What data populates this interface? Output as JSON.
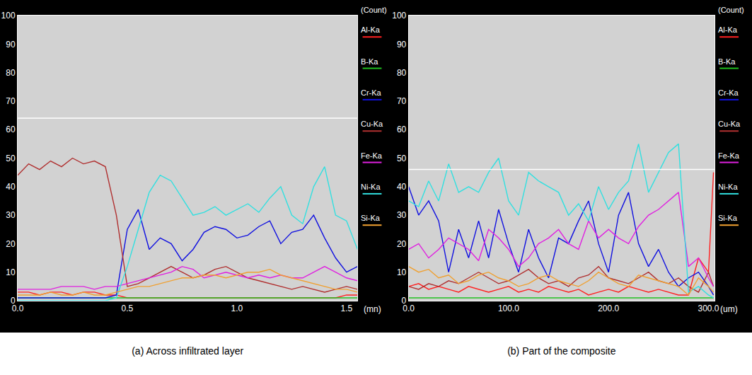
{
  "chart_data": [
    {
      "type": "line",
      "caption": "(a) Across infiltrated layer",
      "x_label": "(mn)",
      "y_label": "(Count)",
      "legend": "right",
      "grid": false,
      "xlim": [
        0,
        1.55
      ],
      "xticks": [
        {
          "value": 0,
          "label": "0.0"
        },
        {
          "value": 0.5,
          "label": "0.5"
        },
        {
          "value": 1.0,
          "label": "1.0"
        },
        {
          "value": 1.5,
          "label": "1.5"
        }
      ],
      "ylim": [
        0,
        100
      ],
      "yticks": [
        0,
        10,
        20,
        30,
        40,
        50,
        60,
        70,
        80,
        90,
        100
      ],
      "scan_line_y": 64,
      "x": [
        0,
        0.05,
        0.1,
        0.15,
        0.2,
        0.25,
        0.3,
        0.35,
        0.4,
        0.45,
        0.5,
        0.55,
        0.6,
        0.65,
        0.7,
        0.75,
        0.8,
        0.85,
        0.9,
        0.95,
        1.0,
        1.05,
        1.1,
        1.15,
        1.2,
        1.25,
        1.3,
        1.35,
        1.4,
        1.45,
        1.5,
        1.55
      ],
      "series": [
        {
          "name": "Al-Ka",
          "color": "#ff2020",
          "values": [
            3,
            3,
            2,
            3,
            3,
            2,
            3,
            3,
            2,
            2,
            1,
            1,
            1,
            1,
            1,
            1,
            1,
            1,
            1,
            1,
            1,
            1,
            1,
            1,
            1,
            1,
            1,
            1,
            1,
            1,
            2,
            2
          ]
        },
        {
          "name": "B-Ka",
          "color": "#20c020",
          "values": [
            1,
            1,
            1,
            1,
            1,
            1,
            1,
            1,
            1,
            1,
            1,
            1,
            1,
            1,
            1,
            1,
            1,
            1,
            1,
            1,
            1,
            1,
            1,
            1,
            1,
            1,
            1,
            1,
            1,
            1,
            1,
            1
          ]
        },
        {
          "name": "Cr-Ka",
          "color": "#1010e0",
          "values": [
            1,
            1,
            1,
            1,
            1,
            1,
            1,
            1,
            1,
            2,
            25,
            32,
            18,
            22,
            20,
            14,
            18,
            24,
            26,
            25,
            22,
            23,
            26,
            28,
            20,
            24,
            25,
            30,
            22,
            15,
            10,
            12
          ]
        },
        {
          "name": "Cu-Ka",
          "color": "#b03030",
          "values": [
            44,
            48,
            46,
            49,
            47,
            50,
            48,
            49,
            47,
            30,
            5,
            6,
            8,
            10,
            12,
            10,
            8,
            9,
            11,
            12,
            10,
            8,
            7,
            6,
            5,
            4,
            5,
            4,
            3,
            4,
            5,
            4
          ]
        },
        {
          "name": "Fe-Ka",
          "color": "#e020e0",
          "values": [
            4,
            4,
            4,
            4,
            5,
            5,
            5,
            4,
            5,
            5,
            6,
            7,
            8,
            9,
            10,
            12,
            11,
            8,
            9,
            10,
            9,
            8,
            9,
            8,
            9,
            8,
            8,
            10,
            12,
            10,
            8,
            7
          ]
        },
        {
          "name": "Ni-Ka",
          "color": "#30e0e0",
          "values": [
            0,
            0,
            0,
            0,
            0,
            0,
            0,
            0,
            0,
            1,
            12,
            25,
            38,
            44,
            42,
            36,
            30,
            31,
            33,
            30,
            32,
            34,
            31,
            36,
            40,
            30,
            27,
            40,
            47,
            30,
            28,
            18
          ]
        },
        {
          "name": "Si-Ka",
          "color": "#f0a030",
          "values": [
            2,
            2,
            2,
            3,
            2,
            2,
            3,
            2,
            2,
            3,
            4,
            5,
            5,
            6,
            7,
            8,
            8,
            9,
            9,
            8,
            9,
            10,
            10,
            11,
            9,
            8,
            7,
            6,
            5,
            4,
            4,
            3
          ]
        }
      ]
    },
    {
      "type": "line",
      "caption": "(b) Part of the composite",
      "x_label": "(um)",
      "y_label": "(Count)",
      "legend": "right",
      "grid": false,
      "xlim": [
        0,
        306
      ],
      "xticks": [
        {
          "value": 0,
          "label": "0.0"
        },
        {
          "value": 100,
          "label": "100.0"
        },
        {
          "value": 200,
          "label": "200.0"
        },
        {
          "value": 300,
          "label": "300.0"
        }
      ],
      "ylim": [
        0,
        100
      ],
      "yticks": [
        0,
        10,
        20,
        30,
        40,
        50,
        60,
        70,
        80,
        90,
        100
      ],
      "scan_line_y": 46,
      "x": [
        0,
        10,
        20,
        30,
        40,
        50,
        60,
        70,
        80,
        90,
        100,
        110,
        120,
        130,
        140,
        150,
        160,
        170,
        180,
        190,
        200,
        210,
        220,
        230,
        240,
        250,
        260,
        270,
        280,
        290,
        300,
        305
      ],
      "series": [
        {
          "name": "Al-Ka",
          "color": "#ff2020",
          "values": [
            5,
            6,
            4,
            5,
            4,
            3,
            5,
            4,
            3,
            4,
            5,
            3,
            4,
            3,
            5,
            4,
            3,
            4,
            2,
            3,
            4,
            3,
            5,
            4,
            3,
            4,
            3,
            2,
            2,
            15,
            10,
            45
          ]
        },
        {
          "name": "B-Ka",
          "color": "#20c020",
          "values": [
            1,
            1,
            1,
            1,
            1,
            1,
            1,
            1,
            1,
            1,
            1,
            1,
            1,
            1,
            1,
            1,
            1,
            1,
            1,
            1,
            1,
            1,
            1,
            1,
            1,
            1,
            1,
            1,
            1,
            1,
            1,
            1
          ]
        },
        {
          "name": "Cr-Ka",
          "color": "#1010e0",
          "values": [
            40,
            30,
            35,
            28,
            10,
            25,
            15,
            28,
            15,
            32,
            20,
            10,
            25,
            15,
            8,
            22,
            20,
            28,
            35,
            20,
            10,
            30,
            38,
            20,
            12,
            18,
            10,
            5,
            8,
            10,
            5,
            2
          ]
        },
        {
          "name": "Cu-Ka",
          "color": "#b03030",
          "values": [
            5,
            4,
            6,
            5,
            7,
            6,
            8,
            10,
            8,
            6,
            7,
            9,
            11,
            8,
            6,
            7,
            5,
            8,
            9,
            12,
            8,
            7,
            6,
            8,
            10,
            7,
            6,
            8,
            5,
            3,
            10,
            5
          ]
        },
        {
          "name": "Fe-Ka",
          "color": "#e020e0",
          "values": [
            18,
            20,
            15,
            18,
            22,
            20,
            18,
            14,
            25,
            22,
            18,
            12,
            15,
            20,
            22,
            25,
            20,
            18,
            28,
            22,
            25,
            22,
            20,
            26,
            30,
            32,
            35,
            38,
            12,
            15,
            8,
            5
          ]
        },
        {
          "name": "Ni-Ka",
          "color": "#30e0e0",
          "values": [
            35,
            33,
            42,
            35,
            48,
            38,
            40,
            38,
            45,
            50,
            35,
            30,
            45,
            42,
            40,
            38,
            30,
            34,
            28,
            40,
            32,
            38,
            42,
            55,
            38,
            45,
            52,
            55,
            3,
            5,
            2,
            1
          ]
        },
        {
          "name": "Si-Ka",
          "color": "#f0a030",
          "values": [
            12,
            10,
            11,
            8,
            9,
            6,
            7,
            9,
            10,
            8,
            7,
            5,
            6,
            8,
            9,
            7,
            6,
            5,
            7,
            10,
            8,
            6,
            5,
            9,
            8,
            7,
            6,
            5,
            2,
            8,
            5,
            3
          ]
        }
      ]
    }
  ]
}
